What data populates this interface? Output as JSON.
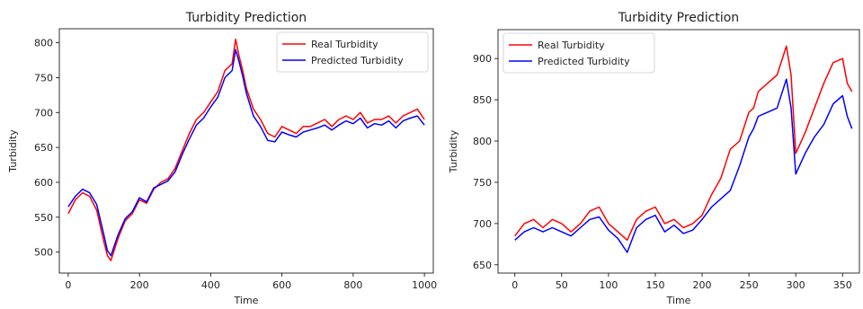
{
  "chart_data": [
    {
      "type": "line",
      "title": "Turbidity Prediction",
      "xlabel": "Time",
      "ylabel": "Turbidity",
      "xlim": [
        -25,
        1025
      ],
      "ylim": [
        470,
        820
      ],
      "xticks": [
        0,
        200,
        400,
        600,
        800,
        1000
      ],
      "yticks": [
        500,
        550,
        600,
        650,
        700,
        750,
        800
      ],
      "legend_position": "top-right",
      "grid": false,
      "series": [
        {
          "name": "Real  Turbidity",
          "color": "#ff0000",
          "x": [
            0,
            20,
            40,
            60,
            80,
            100,
            110,
            120,
            140,
            160,
            180,
            200,
            220,
            240,
            260,
            280,
            300,
            320,
            340,
            360,
            380,
            400,
            420,
            440,
            460,
            470,
            480,
            490,
            500,
            520,
            540,
            560,
            580,
            600,
            620,
            640,
            660,
            680,
            700,
            720,
            740,
            760,
            780,
            800,
            820,
            840,
            860,
            880,
            900,
            920,
            940,
            960,
            980,
            1000
          ],
          "y": [
            555,
            575,
            585,
            580,
            560,
            515,
            495,
            488,
            520,
            545,
            555,
            575,
            570,
            590,
            600,
            605,
            620,
            645,
            670,
            690,
            700,
            715,
            730,
            760,
            770,
            805,
            780,
            760,
            735,
            705,
            690,
            670,
            665,
            680,
            675,
            670,
            680,
            680,
            685,
            690,
            680,
            690,
            695,
            690,
            700,
            685,
            690,
            690,
            695,
            685,
            695,
            700,
            705,
            690
          ]
        },
        {
          "name": "Predicted  Turbidity",
          "color": "#0000ff",
          "x": [
            0,
            20,
            40,
            60,
            80,
            100,
            110,
            120,
            140,
            160,
            180,
            200,
            220,
            240,
            260,
            280,
            300,
            320,
            340,
            360,
            380,
            400,
            420,
            440,
            460,
            470,
            480,
            490,
            500,
            520,
            540,
            560,
            580,
            600,
            620,
            640,
            660,
            680,
            700,
            720,
            740,
            760,
            780,
            800,
            820,
            840,
            860,
            880,
            900,
            920,
            940,
            960,
            980,
            1000
          ],
          "y": [
            565,
            580,
            590,
            585,
            568,
            525,
            502,
            495,
            525,
            548,
            558,
            578,
            572,
            592,
            597,
            602,
            615,
            640,
            662,
            682,
            692,
            708,
            722,
            750,
            760,
            790,
            772,
            752,
            728,
            695,
            680,
            660,
            658,
            672,
            668,
            665,
            672,
            675,
            678,
            682,
            675,
            682,
            688,
            684,
            692,
            678,
            684,
            682,
            688,
            678,
            688,
            692,
            695,
            682
          ]
        }
      ]
    },
    {
      "type": "line",
      "title": "Turbidity Prediction",
      "xlabel": "Time",
      "ylabel": "Turbidity",
      "xlim": [
        -18,
        368
      ],
      "ylim": [
        640,
        935
      ],
      "xticks": [
        0,
        50,
        100,
        150,
        200,
        250,
        300,
        350
      ],
      "yticks": [
        650,
        700,
        750,
        800,
        850,
        900
      ],
      "legend_position": "top-left",
      "grid": false,
      "series": [
        {
          "name": "Real  Turbidity",
          "color": "#ff0000",
          "x": [
            0,
            10,
            20,
            30,
            40,
            50,
            60,
            70,
            80,
            90,
            100,
            110,
            120,
            130,
            140,
            150,
            160,
            170,
            180,
            190,
            200,
            210,
            220,
            230,
            240,
            250,
            255,
            260,
            270,
            280,
            290,
            295,
            300,
            310,
            320,
            330,
            340,
            350,
            355,
            360
          ],
          "y": [
            685,
            700,
            705,
            695,
            705,
            700,
            690,
            700,
            715,
            720,
            700,
            690,
            680,
            705,
            715,
            720,
            700,
            705,
            695,
            700,
            710,
            735,
            755,
            790,
            800,
            835,
            840,
            860,
            870,
            880,
            915,
            880,
            785,
            810,
            840,
            870,
            895,
            900,
            870,
            860
          ]
        },
        {
          "name": "Predicted  Turbidity",
          "color": "#0000ff",
          "x": [
            0,
            10,
            20,
            30,
            40,
            50,
            60,
            70,
            80,
            90,
            100,
            110,
            120,
            130,
            140,
            150,
            160,
            170,
            180,
            190,
            200,
            210,
            220,
            230,
            240,
            250,
            255,
            260,
            270,
            280,
            290,
            295,
            300,
            310,
            320,
            330,
            340,
            350,
            355,
            360
          ],
          "y": [
            680,
            690,
            695,
            690,
            695,
            690,
            685,
            695,
            705,
            708,
            692,
            682,
            665,
            695,
            705,
            710,
            690,
            698,
            688,
            692,
            705,
            720,
            730,
            740,
            770,
            805,
            815,
            830,
            835,
            840,
            875,
            840,
            760,
            785,
            805,
            820,
            845,
            855,
            830,
            815
          ]
        }
      ]
    }
  ]
}
